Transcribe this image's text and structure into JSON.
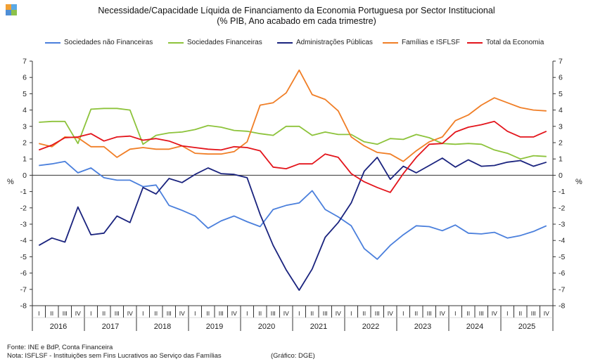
{
  "title": "Necessidade/Capacidade  Líquida de Financiamento  da Economia Portuguesa por Sector Institucional",
  "subtitle": "(% PIB, Ano acabado em cada trimestre)",
  "footer": {
    "source": "Fonte: INE e  BdP, Conta Financeira",
    "note": "Nota: ISFLSF - Instituições  sem Fins Lucrativos  ao Serviço das Famílias",
    "credit": "(Gráfico: DGE)"
  },
  "logo_colors": [
    "#f2a033",
    "#5aa9e6",
    "#4e8ed6",
    "#8cc14b"
  ],
  "chart_data": {
    "type": "line",
    "title": "Necessidade/Capacidade  Líquida de Financiamento  da Economia Portuguesa por Sector Institucional",
    "subtitle": "(% PIB, Ano acabado em cada trimestre)",
    "ylabel": "%",
    "ylabel_right": "%",
    "ylim": [
      -8,
      7
    ],
    "yticks": [
      "-8",
      "-7",
      "-6",
      "-5",
      "-4",
      "-3",
      "-2",
      "-1",
      "0",
      "1",
      "2",
      "3",
      "4",
      "5",
      "6",
      "7"
    ],
    "quarter_labels": [
      "I",
      "II",
      "III",
      "IV"
    ],
    "years": [
      "2016",
      "2017",
      "2018",
      "2019",
      "2020",
      "2021",
      "2022",
      "2023",
      "2024",
      "2025"
    ],
    "grid": false,
    "legend": "top",
    "series": [
      {
        "name": "Sociedades não Financeiras",
        "color": "#4a7fdc",
        "values": [
          0.6,
          0.7,
          0.85,
          0.15,
          0.45,
          -0.15,
          -0.3,
          -0.3,
          -0.7,
          -0.6,
          -1.85,
          -2.15,
          -2.5,
          -3.25,
          -2.8,
          -2.5,
          -2.85,
          -3.15,
          -2.1,
          -1.85,
          -1.7,
          -0.95,
          -2.1,
          -2.55,
          -3.1,
          -4.5,
          -5.15,
          -4.3,
          -3.65,
          -3.1,
          -3.15,
          -3.4,
          -3.05,
          -3.55,
          -3.6,
          -3.5,
          -3.85,
          -3.7,
          -3.45,
          -3.1
        ]
      },
      {
        "name": "Sociedades Financeiras",
        "color": "#8dc33b",
        "values": [
          3.25,
          3.3,
          3.3,
          1.95,
          4.05,
          4.1,
          4.1,
          4.0,
          1.9,
          2.45,
          2.6,
          2.65,
          2.8,
          3.05,
          2.95,
          2.75,
          2.7,
          2.55,
          2.45,
          3.0,
          3.0,
          2.45,
          2.65,
          2.5,
          2.5,
          2.05,
          1.9,
          2.25,
          2.2,
          2.5,
          2.3,
          1.95,
          1.9,
          1.95,
          1.9,
          1.55,
          1.35,
          1.0,
          1.2,
          1.15
        ]
      },
      {
        "name": "Administrações  Públicas",
        "color": "#1a237e",
        "values": [
          -4.3,
          -3.85,
          -4.1,
          -1.95,
          -3.65,
          -3.55,
          -2.5,
          -2.9,
          -0.75,
          -1.15,
          -0.2,
          -0.45,
          0.05,
          0.45,
          0.1,
          0.05,
          -0.15,
          -2.4,
          -4.3,
          -5.8,
          -7.05,
          -5.75,
          -3.8,
          -2.9,
          -1.7,
          0.25,
          1.1,
          -0.25,
          0.55,
          0.15,
          0.6,
          1.05,
          0.5,
          0.95,
          0.55,
          0.6,
          0.8,
          0.9,
          0.55,
          0.8
        ]
      },
      {
        "name": "Famílias  e ISFLSF",
        "color": "#f07e26",
        "values": [
          1.95,
          1.75,
          2.35,
          2.3,
          1.75,
          1.75,
          1.1,
          1.6,
          1.7,
          1.6,
          1.6,
          1.8,
          1.35,
          1.3,
          1.3,
          1.45,
          2.05,
          4.3,
          4.45,
          5.05,
          6.45,
          4.95,
          4.65,
          3.95,
          2.35,
          1.8,
          1.4,
          1.3,
          0.85,
          1.5,
          2.05,
          2.35,
          3.35,
          3.7,
          4.3,
          4.75,
          4.45,
          4.15,
          4.0,
          3.95
        ]
      },
      {
        "name": "Total da Economia",
        "color": "#e3141b",
        "values": [
          1.55,
          1.85,
          2.3,
          2.35,
          2.55,
          2.1,
          2.35,
          2.4,
          2.15,
          2.25,
          2.1,
          1.8,
          1.7,
          1.6,
          1.55,
          1.75,
          1.7,
          1.5,
          0.5,
          0.4,
          0.7,
          0.7,
          1.3,
          1.1,
          0.1,
          -0.4,
          -0.75,
          -1.05,
          0.1,
          1.1,
          1.9,
          1.95,
          2.65,
          2.95,
          3.1,
          3.3,
          2.7,
          2.35,
          2.35,
          2.7
        ]
      }
    ]
  }
}
